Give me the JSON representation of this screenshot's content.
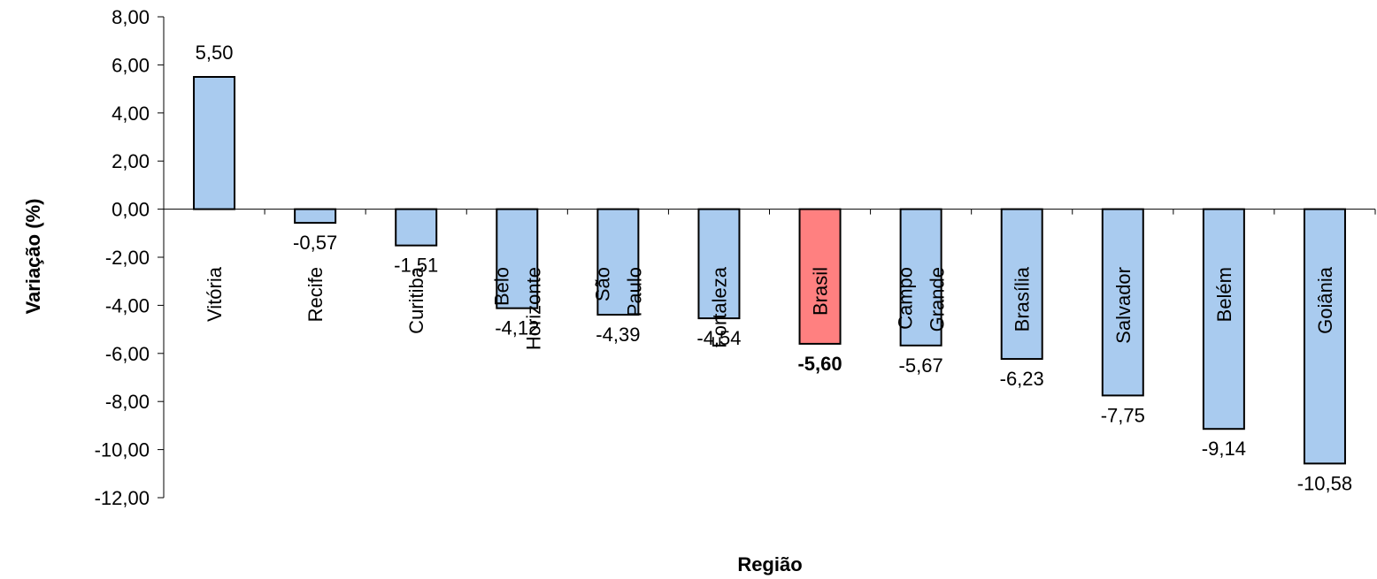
{
  "chart_data": {
    "type": "bar",
    "categories": [
      "Vitória",
      "Recife",
      "Curitiba",
      "Belo Horizonte",
      "São Paulo",
      "Fortaleza",
      "Brasil",
      "Campo Grande",
      "Brasília",
      "Salvador",
      "Belém",
      "Goiânia"
    ],
    "values": [
      5.5,
      -0.57,
      -1.51,
      -4.12,
      -4.39,
      -4.54,
      -5.6,
      -5.67,
      -6.23,
      -7.75,
      -9.14,
      -10.58
    ],
    "value_labels": [
      "5,50",
      "-0,57",
      "-1,51",
      "-4,12",
      "-4,39",
      "-4,54",
      "-5,60",
      "-5,67",
      "-6,23",
      "-7,75",
      "-9,14",
      "-10,58"
    ],
    "highlight_index": 6,
    "xlabel": "Região",
    "ylabel": "Variação (%)",
    "ylim": [
      -12,
      8
    ],
    "yticks": [
      8,
      6,
      4,
      2,
      0,
      -2,
      -4,
      -6,
      -8,
      -10,
      -12
    ],
    "ytick_labels": [
      "8,00",
      "6,00",
      "4,00",
      "2,00",
      "0,00",
      "-2,00",
      "-4,00",
      "-6,00",
      "-8,00",
      "-10,00",
      "-12,00"
    ],
    "colors": {
      "bar": "#a9cbef",
      "highlight": "#ff8080",
      "outline": "#000000"
    },
    "grid": false,
    "legend": "none"
  }
}
